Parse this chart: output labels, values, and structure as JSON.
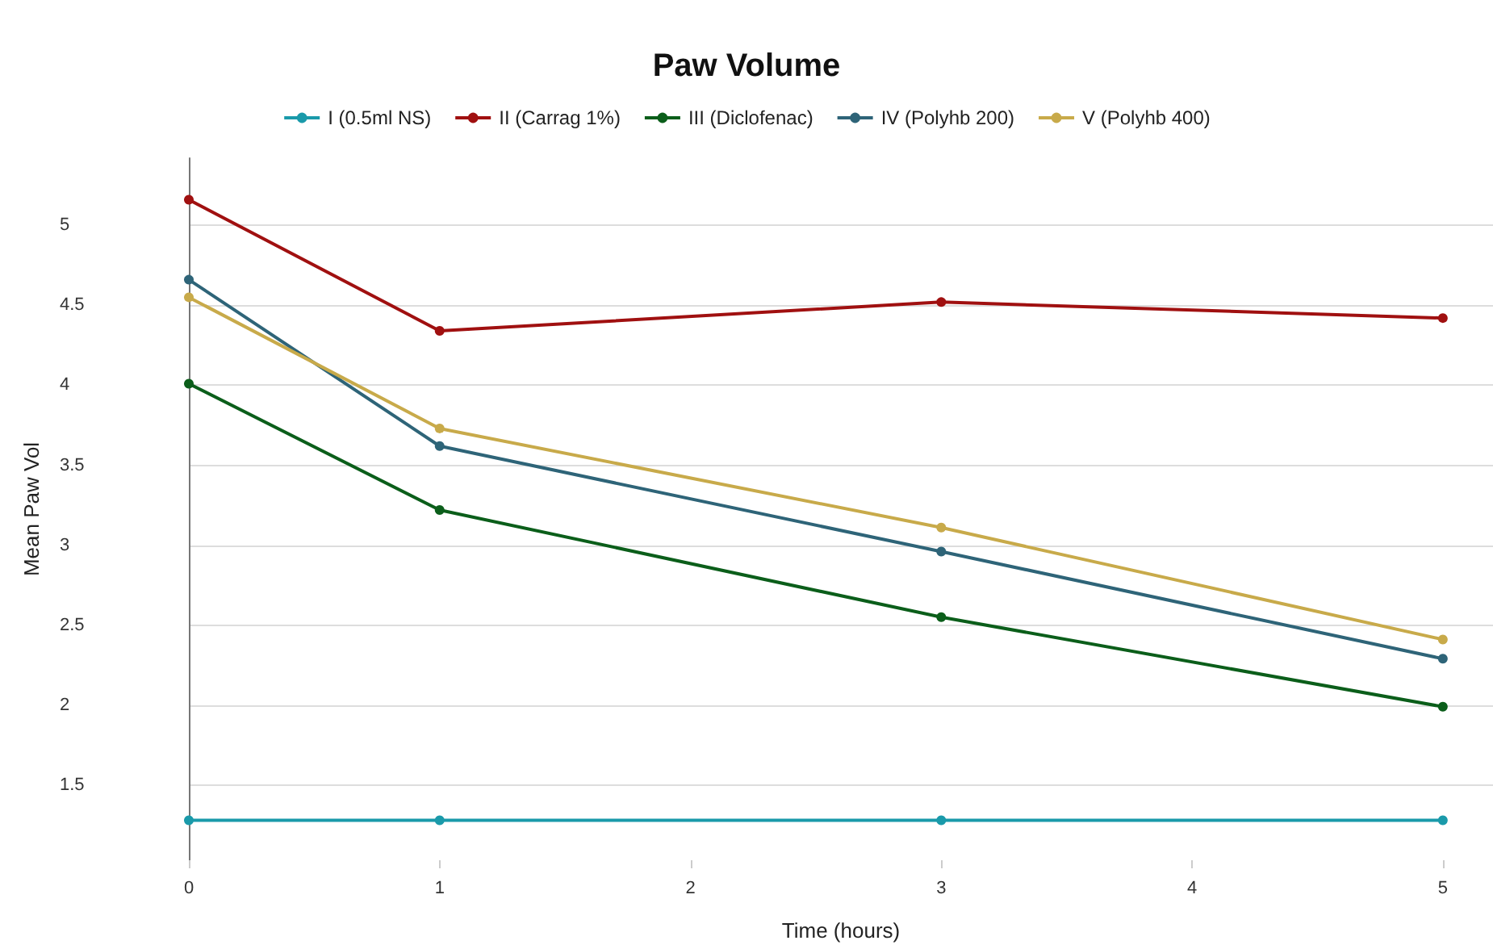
{
  "chart_data": {
    "type": "line",
    "title": "Paw Volume",
    "xlabel": "Time (hours)",
    "ylabel": "Mean Paw Vol",
    "x": [
      0,
      1,
      3,
      5
    ],
    "series": [
      {
        "name": "I (0.5ml NS)",
        "color": "#1a9aaa",
        "values": [
          1.28,
          1.28,
          1.28,
          1.28
        ]
      },
      {
        "name": "II (Carrag 1%)",
        "color": "#a01010",
        "values": [
          5.16,
          4.34,
          4.52,
          4.42
        ]
      },
      {
        "name": "III (Diclofenac)",
        "color": "#0b5e1a",
        "values": [
          4.01,
          3.22,
          2.55,
          1.99
        ]
      },
      {
        "name": "IV (Polyhb 200)",
        "color": "#2e6478",
        "values": [
          4.66,
          3.62,
          2.96,
          2.29
        ]
      },
      {
        "name": "V (Polyhb 400)",
        "color": "#c8aa4a",
        "values": [
          4.55,
          3.73,
          3.11,
          2.41
        ]
      }
    ],
    "xlim": [
      0,
      5.2
    ],
    "xticks": [
      0,
      1,
      2,
      3,
      4,
      5
    ],
    "ylim": [
      1.03,
      5.42
    ],
    "yticks": [
      1.5,
      2,
      2.5,
      3,
      3.5,
      4,
      4.5,
      5
    ],
    "grid": "y",
    "legend": "top",
    "marker": "circle",
    "line_style": "solid"
  }
}
